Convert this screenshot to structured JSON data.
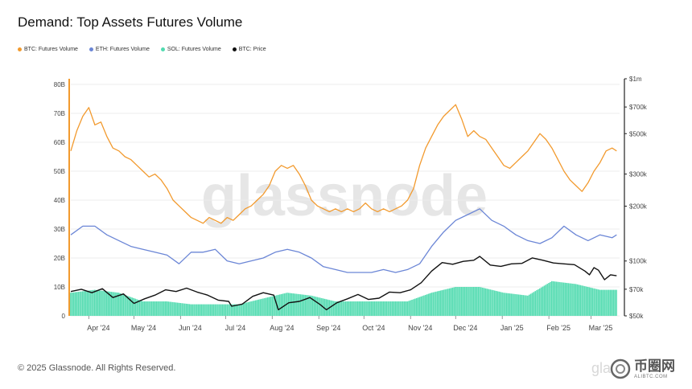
{
  "title": "Demand: Top Assets Futures Volume",
  "footer": "© 2025 Glassnode. All Rights Reserved.",
  "watermark": "glassnode",
  "watermark_bottom": "gla",
  "badge": {
    "cn": "币圈网",
    "url": "ALIBTC.COM"
  },
  "colors": {
    "btc_volume": "#f29a2e",
    "eth_volume": "#6b86d6",
    "sol_volume": "#52dbb0",
    "btc_price": "#111111"
  },
  "chart_data": {
    "type": "line",
    "legend": [
      "BTC: Futures Volume",
      "ETH: Futures Volume",
      "SOL: Futures Volume",
      "BTC: Price"
    ],
    "legend_placement": "top-left",
    "x_start": "2024-03-20",
    "x_end": "2025-03-20",
    "x_ticks": [
      {
        "date": "2024-04-01",
        "label": "Apr '24"
      },
      {
        "date": "2024-05-01",
        "label": "May '24"
      },
      {
        "date": "2024-06-01",
        "label": "Jun '24"
      },
      {
        "date": "2024-07-01",
        "label": "Jul '24"
      },
      {
        "date": "2024-08-01",
        "label": "Aug '24"
      },
      {
        "date": "2024-09-01",
        "label": "Sep '24"
      },
      {
        "date": "2024-10-01",
        "label": "Oct '24"
      },
      {
        "date": "2024-11-01",
        "label": "Nov '24"
      },
      {
        "date": "2024-12-01",
        "label": "Dec '24"
      },
      {
        "date": "2025-01-01",
        "label": "Jan '25"
      },
      {
        "date": "2025-02-01",
        "label": "Feb '25"
      },
      {
        "date": "2025-03-01",
        "label": "Mar '25"
      }
    ],
    "y_left": {
      "min": 0,
      "max": 80,
      "unit_suffix": "B",
      "ticks": [
        0,
        10,
        20,
        30,
        40,
        50,
        60,
        70,
        80
      ],
      "tick_labels": [
        "0",
        "10B",
        "20B",
        "30B",
        "40B",
        "50B",
        "60B",
        "70B",
        "80B"
      ]
    },
    "y_right": {
      "scale": "log",
      "min": 50000,
      "max": 1000000,
      "ticks": [
        50000,
        70000,
        100000,
        200000,
        300000,
        500000,
        700000,
        1000000
      ],
      "tick_labels": [
        "$50k",
        "$70k",
        "$100k",
        "$200k",
        "$300k",
        "$500k",
        "$700k",
        "$1m"
      ]
    },
    "series": [
      {
        "name": "BTC: Futures Volume",
        "axis": "left",
        "kind": "line",
        "color": "#f29a2e",
        "points": [
          [
            "2024-03-20",
            57
          ],
          [
            "2024-03-24",
            64
          ],
          [
            "2024-03-28",
            69
          ],
          [
            "2024-04-01",
            72
          ],
          [
            "2024-04-05",
            66
          ],
          [
            "2024-04-09",
            67
          ],
          [
            "2024-04-13",
            62
          ],
          [
            "2024-04-17",
            58
          ],
          [
            "2024-04-21",
            57
          ],
          [
            "2024-04-25",
            55
          ],
          [
            "2024-04-29",
            54
          ],
          [
            "2024-05-03",
            52
          ],
          [
            "2024-05-07",
            50
          ],
          [
            "2024-05-11",
            48
          ],
          [
            "2024-05-15",
            49
          ],
          [
            "2024-05-19",
            47
          ],
          [
            "2024-05-23",
            44
          ],
          [
            "2024-05-27",
            40
          ],
          [
            "2024-05-31",
            38
          ],
          [
            "2024-06-04",
            36
          ],
          [
            "2024-06-08",
            34
          ],
          [
            "2024-06-12",
            33
          ],
          [
            "2024-06-16",
            32
          ],
          [
            "2024-06-20",
            34
          ],
          [
            "2024-06-24",
            33
          ],
          [
            "2024-06-28",
            32
          ],
          [
            "2024-07-02",
            34
          ],
          [
            "2024-07-06",
            33
          ],
          [
            "2024-07-10",
            35
          ],
          [
            "2024-07-14",
            37
          ],
          [
            "2024-07-18",
            38
          ],
          [
            "2024-07-22",
            40
          ],
          [
            "2024-07-26",
            42
          ],
          [
            "2024-07-30",
            45
          ],
          [
            "2024-08-03",
            50
          ],
          [
            "2024-08-07",
            52
          ],
          [
            "2024-08-11",
            51
          ],
          [
            "2024-08-15",
            52
          ],
          [
            "2024-08-19",
            49
          ],
          [
            "2024-08-23",
            45
          ],
          [
            "2024-08-27",
            40
          ],
          [
            "2024-08-31",
            38
          ],
          [
            "2024-09-04",
            37
          ],
          [
            "2024-09-08",
            36
          ],
          [
            "2024-09-12",
            37
          ],
          [
            "2024-09-16",
            36
          ],
          [
            "2024-09-20",
            37
          ],
          [
            "2024-09-24",
            36
          ],
          [
            "2024-09-28",
            37
          ],
          [
            "2024-10-02",
            39
          ],
          [
            "2024-10-06",
            37
          ],
          [
            "2024-10-10",
            36
          ],
          [
            "2024-10-14",
            37
          ],
          [
            "2024-10-18",
            36
          ],
          [
            "2024-10-22",
            37
          ],
          [
            "2024-10-26",
            38
          ],
          [
            "2024-10-30",
            40
          ],
          [
            "2024-11-03",
            44
          ],
          [
            "2024-11-07",
            52
          ],
          [
            "2024-11-11",
            58
          ],
          [
            "2024-11-15",
            62
          ],
          [
            "2024-11-19",
            66
          ],
          [
            "2024-11-23",
            69
          ],
          [
            "2024-11-27",
            71
          ],
          [
            "2024-12-01",
            73
          ],
          [
            "2024-12-05",
            68
          ],
          [
            "2024-12-09",
            62
          ],
          [
            "2024-12-13",
            64
          ],
          [
            "2024-12-17",
            62
          ],
          [
            "2024-12-21",
            61
          ],
          [
            "2024-12-25",
            58
          ],
          [
            "2024-12-29",
            55
          ],
          [
            "2025-01-02",
            52
          ],
          [
            "2025-01-06",
            51
          ],
          [
            "2025-01-10",
            53
          ],
          [
            "2025-01-14",
            55
          ],
          [
            "2025-01-18",
            57
          ],
          [
            "2025-01-22",
            60
          ],
          [
            "2025-01-26",
            63
          ],
          [
            "2025-01-30",
            61
          ],
          [
            "2025-02-03",
            58
          ],
          [
            "2025-02-07",
            54
          ],
          [
            "2025-02-11",
            50
          ],
          [
            "2025-02-15",
            47
          ],
          [
            "2025-02-19",
            45
          ],
          [
            "2025-02-23",
            43
          ],
          [
            "2025-02-27",
            46
          ],
          [
            "2025-03-03",
            50
          ],
          [
            "2025-03-07",
            53
          ],
          [
            "2025-03-11",
            57
          ],
          [
            "2025-03-15",
            58
          ],
          [
            "2025-03-18",
            57
          ]
        ]
      },
      {
        "name": "ETH: Futures Volume",
        "axis": "left",
        "kind": "line",
        "color": "#6b86d6",
        "points": [
          [
            "2024-03-20",
            28
          ],
          [
            "2024-03-28",
            31
          ],
          [
            "2024-04-05",
            31
          ],
          [
            "2024-04-13",
            28
          ],
          [
            "2024-04-21",
            26
          ],
          [
            "2024-04-29",
            24
          ],
          [
            "2024-05-07",
            23
          ],
          [
            "2024-05-15",
            22
          ],
          [
            "2024-05-23",
            21
          ],
          [
            "2024-05-31",
            18
          ],
          [
            "2024-06-08",
            22
          ],
          [
            "2024-06-16",
            22
          ],
          [
            "2024-06-24",
            23
          ],
          [
            "2024-07-02",
            19
          ],
          [
            "2024-07-10",
            18
          ],
          [
            "2024-07-18",
            19
          ],
          [
            "2024-07-26",
            20
          ],
          [
            "2024-08-03",
            22
          ],
          [
            "2024-08-11",
            23
          ],
          [
            "2024-08-19",
            22
          ],
          [
            "2024-08-27",
            20
          ],
          [
            "2024-09-04",
            17
          ],
          [
            "2024-09-12",
            16
          ],
          [
            "2024-09-20",
            15
          ],
          [
            "2024-09-28",
            15
          ],
          [
            "2024-10-06",
            15
          ],
          [
            "2024-10-14",
            16
          ],
          [
            "2024-10-22",
            15
          ],
          [
            "2024-10-30",
            16
          ],
          [
            "2024-11-07",
            18
          ],
          [
            "2024-11-15",
            24
          ],
          [
            "2024-11-23",
            29
          ],
          [
            "2024-12-01",
            33
          ],
          [
            "2024-12-09",
            35
          ],
          [
            "2024-12-17",
            37
          ],
          [
            "2024-12-25",
            33
          ],
          [
            "2025-01-02",
            31
          ],
          [
            "2025-01-10",
            28
          ],
          [
            "2025-01-18",
            26
          ],
          [
            "2025-01-26",
            25
          ],
          [
            "2025-02-03",
            27
          ],
          [
            "2025-02-11",
            31
          ],
          [
            "2025-02-19",
            28
          ],
          [
            "2025-02-27",
            26
          ],
          [
            "2025-03-07",
            28
          ],
          [
            "2025-03-15",
            27
          ],
          [
            "2025-03-18",
            28
          ]
        ]
      },
      {
        "name": "SOL: Futures Volume",
        "axis": "left",
        "kind": "bar",
        "color": "#52dbb0",
        "points": [
          [
            "2024-03-20",
            8
          ],
          [
            "2024-04-05",
            9
          ],
          [
            "2024-04-21",
            8
          ],
          [
            "2024-05-07",
            5
          ],
          [
            "2024-05-23",
            5
          ],
          [
            "2024-06-08",
            4
          ],
          [
            "2024-06-24",
            4
          ],
          [
            "2024-07-10",
            4
          ],
          [
            "2024-07-26",
            6
          ],
          [
            "2024-08-11",
            8
          ],
          [
            "2024-08-27",
            7
          ],
          [
            "2024-09-12",
            5
          ],
          [
            "2024-09-28",
            5
          ],
          [
            "2024-10-14",
            5
          ],
          [
            "2024-10-30",
            5
          ],
          [
            "2024-11-15",
            8
          ],
          [
            "2024-12-01",
            10
          ],
          [
            "2024-12-17",
            10
          ],
          [
            "2025-01-02",
            8
          ],
          [
            "2025-01-18",
            7
          ],
          [
            "2025-02-03",
            12
          ],
          [
            "2025-02-19",
            11
          ],
          [
            "2025-03-07",
            9
          ],
          [
            "2025-03-18",
            9
          ]
        ]
      },
      {
        "name": "BTC: Price",
        "axis": "right",
        "kind": "line",
        "color": "#111111",
        "points": [
          [
            "2024-03-20",
            68000
          ],
          [
            "2024-03-27",
            70000
          ],
          [
            "2024-04-03",
            67000
          ],
          [
            "2024-04-10",
            70500
          ],
          [
            "2024-04-17",
            63000
          ],
          [
            "2024-04-24",
            66000
          ],
          [
            "2024-05-01",
            58500
          ],
          [
            "2024-05-08",
            62000
          ],
          [
            "2024-05-15",
            65000
          ],
          [
            "2024-05-22",
            69500
          ],
          [
            "2024-05-29",
            68000
          ],
          [
            "2024-06-05",
            71000
          ],
          [
            "2024-06-12",
            67500
          ],
          [
            "2024-06-19",
            65000
          ],
          [
            "2024-06-26",
            61000
          ],
          [
            "2024-07-03",
            60000
          ],
          [
            "2024-07-05",
            56500
          ],
          [
            "2024-07-12",
            58000
          ],
          [
            "2024-07-19",
            64000
          ],
          [
            "2024-07-26",
            67000
          ],
          [
            "2024-08-02",
            65000
          ],
          [
            "2024-08-05",
            54000
          ],
          [
            "2024-08-12",
            59000
          ],
          [
            "2024-08-19",
            60000
          ],
          [
            "2024-08-26",
            63000
          ],
          [
            "2024-09-02",
            57500
          ],
          [
            "2024-09-06",
            54000
          ],
          [
            "2024-09-13",
            59000
          ],
          [
            "2024-09-20",
            62000
          ],
          [
            "2024-09-27",
            65500
          ],
          [
            "2024-10-04",
            61500
          ],
          [
            "2024-10-11",
            62500
          ],
          [
            "2024-10-18",
            67500
          ],
          [
            "2024-10-25",
            67000
          ],
          [
            "2024-11-01",
            69500
          ],
          [
            "2024-11-08",
            76000
          ],
          [
            "2024-11-15",
            88000
          ],
          [
            "2024-11-22",
            98000
          ],
          [
            "2024-11-29",
            96000
          ],
          [
            "2024-12-06",
            99500
          ],
          [
            "2024-12-13",
            101000
          ],
          [
            "2024-12-17",
            106000
          ],
          [
            "2024-12-24",
            95000
          ],
          [
            "2024-12-31",
            93500
          ],
          [
            "2025-01-07",
            96500
          ],
          [
            "2025-01-14",
            97000
          ],
          [
            "2025-01-21",
            104000
          ],
          [
            "2025-01-28",
            101000
          ],
          [
            "2025-02-04",
            97500
          ],
          [
            "2025-02-11",
            96500
          ],
          [
            "2025-02-18",
            95500
          ],
          [
            "2025-02-25",
            88000
          ],
          [
            "2025-02-28",
            84000
          ],
          [
            "2025-03-03",
            92000
          ],
          [
            "2025-03-06",
            89000
          ],
          [
            "2025-03-10",
            79000
          ],
          [
            "2025-03-14",
            84000
          ],
          [
            "2025-03-18",
            83000
          ]
        ]
      }
    ]
  }
}
